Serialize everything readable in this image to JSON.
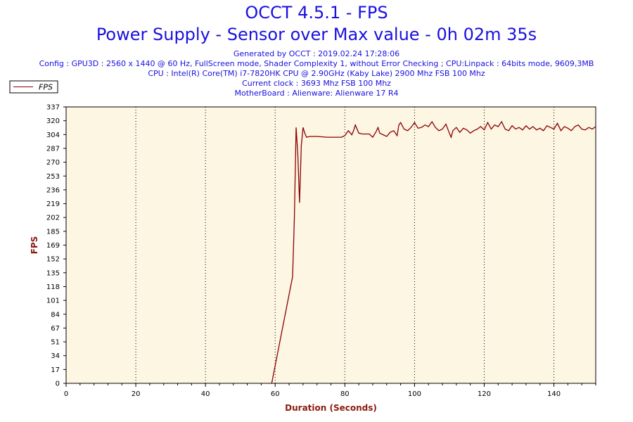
{
  "header": {
    "title": "OCCT 4.5.1 - FPS",
    "subtitle": "Power Supply - Sensor over Max value - 0h 02m 35s",
    "generated": "Generated by OCCT : 2019.02.24 17:28:06",
    "config": "Config : GPU3D : 2560 x 1440 @ 60 Hz, FullScreen mode, Shader Complexity 1, without Error Checking ; CPU:Linpack : 64bits mode, 9609,3MB",
    "cpu": "CPU : Intel(R) Core(TM) i7-7820HK CPU @ 2.90GHz (Kaby Lake) 2900 Mhz FSB 100 Mhz",
    "clock": "Current clock : 3693 Mhz FSB 100 Mhz",
    "motherboard": "MotherBoard : Alienware: Alienware 17 R4"
  },
  "colors": {
    "title": "#1a10e0",
    "line": "#8b0000",
    "plot_bg": "#fdf6e3",
    "axis_label": "#8b1a10"
  },
  "chart_data": {
    "type": "line",
    "xlabel": "Duration (Seconds)",
    "ylabel": "FPS",
    "xlim": [
      0,
      152
    ],
    "ylim": [
      0,
      337
    ],
    "xticks": [
      "0",
      "20",
      "40",
      "60",
      "80",
      "100",
      "120",
      "140"
    ],
    "yticks": [
      "0",
      "17",
      "34",
      "51",
      "67",
      "84",
      "101",
      "118",
      "135",
      "152",
      "169",
      "185",
      "202",
      "219",
      "236",
      "253",
      "270",
      "287",
      "304",
      "320",
      "337"
    ],
    "grid": "vertical-dotted",
    "legend": "top-left",
    "series": [
      {
        "name": "FPS",
        "x": [
          59,
          65,
          65.5,
          66,
          66.5,
          67,
          67.5,
          68,
          68.5,
          69,
          70,
          72,
          75,
          79,
          80,
          81,
          82,
          82.5,
          83,
          84,
          85,
          87,
          88,
          89,
          89.5,
          90,
          91,
          92,
          93,
          94,
          95,
          95.5,
          96,
          97,
          98,
          99,
          100,
          101,
          102,
          103,
          104,
          105,
          106,
          107,
          108,
          109,
          110,
          110.5,
          111,
          112,
          113,
          114,
          115,
          116,
          117,
          118,
          119,
          120,
          121,
          122,
          123,
          124,
          125,
          126,
          127,
          128,
          129,
          130,
          131,
          132,
          133,
          134,
          135,
          136,
          137,
          138,
          139,
          140,
          141,
          142,
          143,
          144,
          145,
          146,
          147,
          148,
          149,
          150,
          151,
          152
        ],
        "y": [
          0,
          130,
          200,
          312,
          280,
          220,
          290,
          312,
          305,
          300,
          301,
          301,
          300,
          300,
          302,
          308,
          303,
          308,
          315,
          305,
          304,
          304,
          300,
          307,
          312,
          305,
          303,
          301,
          306,
          308,
          302,
          315,
          318,
          310,
          308,
          312,
          318,
          311,
          312,
          315,
          313,
          319,
          312,
          308,
          310,
          316,
          305,
          300,
          308,
          312,
          306,
          311,
          309,
          305,
          308,
          310,
          313,
          309,
          318,
          310,
          315,
          313,
          319,
          310,
          308,
          314,
          310,
          312,
          309,
          314,
          310,
          313,
          309,
          311,
          308,
          314,
          312,
          310,
          317,
          308,
          313,
          311,
          308,
          313,
          315,
          310,
          309,
          312,
          310,
          313
        ]
      }
    ]
  }
}
